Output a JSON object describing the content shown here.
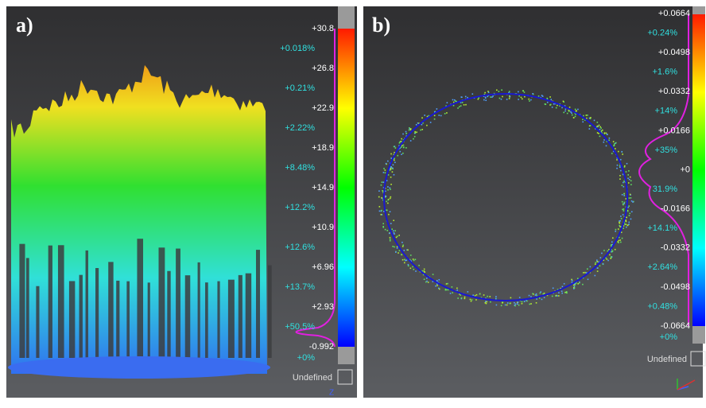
{
  "panels": [
    {
      "label": "a)",
      "scale_values": [
        "+30.8",
        "+26.8",
        "+22.9",
        "+18.9",
        "+14.9",
        "+10.9",
        "+6.96",
        "+2.93",
        "-0.992"
      ],
      "percentages": [
        "+0.018%",
        "+0.21%",
        "+2.22%",
        "+8.48%",
        "+12.2%",
        "+12.6%",
        "+13.7%",
        "+50.5%",
        "+0%"
      ],
      "undefined": "Undefined",
      "axis_label": "Z"
    },
    {
      "label": "b)",
      "scale_values": [
        "+0.0664",
        "+0.0498",
        "+0.0332",
        "+0.0166",
        "+0",
        "-0.0166",
        "-0.0332",
        "-0.0498",
        "-0.0664"
      ],
      "percentages": [
        "+0.24%",
        "+1.6%",
        "+14%",
        "+35%",
        "31.9%",
        "+14.1%",
        "+2.64%",
        "+0.48%",
        "+0%"
      ],
      "undefined": "Undefined"
    }
  ]
}
